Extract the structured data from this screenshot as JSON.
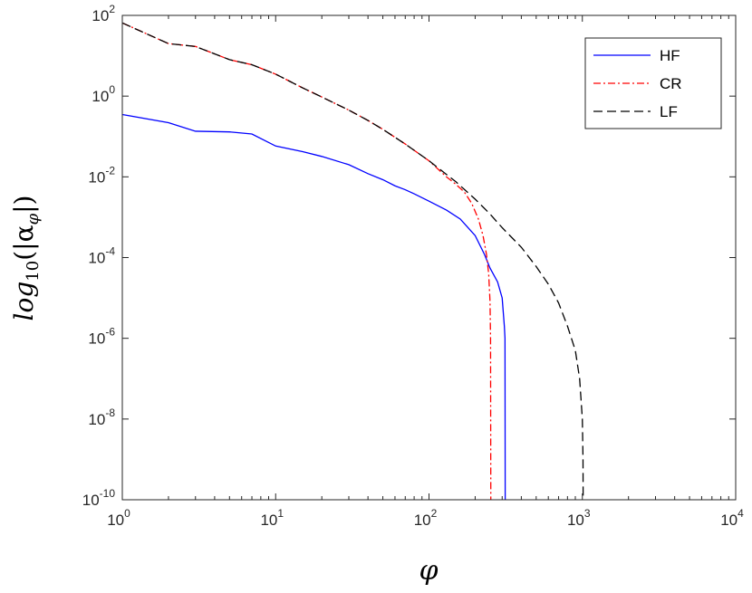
{
  "chart_data": {
    "type": "line",
    "xscale": "log",
    "yscale": "log",
    "xlim": [
      1,
      10000
    ],
    "ylim": [
      1e-10,
      100
    ],
    "xlabel": "φ",
    "ylabel_main": "log",
    "ylabel_sub": "10",
    "ylabel_paren_open": "(|α",
    "ylabel_sub2": "φ",
    "ylabel_paren_close": "|)",
    "grid": false,
    "legend_position": "top-right",
    "x_ticks": [
      {
        "base": "10",
        "exp": "0",
        "value": 1
      },
      {
        "base": "10",
        "exp": "1",
        "value": 10
      },
      {
        "base": "10",
        "exp": "2",
        "value": 100
      },
      {
        "base": "10",
        "exp": "3",
        "value": 1000
      },
      {
        "base": "10",
        "exp": "4",
        "value": 10000
      }
    ],
    "y_ticks": [
      {
        "base": "10",
        "exp": "-10",
        "value": 1e-10
      },
      {
        "base": "10",
        "exp": "-8",
        "value": 1e-08
      },
      {
        "base": "10",
        "exp": "-6",
        "value": 1e-06
      },
      {
        "base": "10",
        "exp": "-4",
        "value": 0.0001
      },
      {
        "base": "10",
        "exp": "-2",
        "value": 0.01
      },
      {
        "base": "10",
        "exp": "0",
        "value": 1
      },
      {
        "base": "10",
        "exp": "2",
        "value": 100
      }
    ],
    "series": [
      {
        "name": "HF",
        "color": "#0000ff",
        "dash": "solid",
        "points": [
          [
            1,
            0.35
          ],
          [
            2,
            0.22
          ],
          [
            3,
            0.135
          ],
          [
            5,
            0.13
          ],
          [
            7,
            0.115
          ],
          [
            10,
            0.058
          ],
          [
            15,
            0.042
          ],
          [
            20,
            0.032
          ],
          [
            30,
            0.02
          ],
          [
            40,
            0.012
          ],
          [
            50,
            0.0085
          ],
          [
            60,
            0.006
          ],
          [
            70,
            0.0048
          ],
          [
            80,
            0.0038
          ],
          [
            100,
            0.0025
          ],
          [
            130,
            0.0015
          ],
          [
            160,
            0.0009
          ],
          [
            200,
            0.00035
          ],
          [
            230,
            0.00012
          ],
          [
            250,
            5.5e-05
          ],
          [
            280,
            2.5e-05
          ],
          [
            300,
            1e-05
          ],
          [
            310,
            2e-06
          ],
          [
            313,
            1e-06
          ],
          [
            314,
            1e-10
          ]
        ]
      },
      {
        "name": "CR",
        "color": "#ff0000",
        "dash": "dashdot",
        "points": [
          [
            1,
            65
          ],
          [
            2,
            20
          ],
          [
            3,
            17
          ],
          [
            5,
            8
          ],
          [
            7,
            6
          ],
          [
            10,
            3.5
          ],
          [
            15,
            1.6
          ],
          [
            20,
            0.95
          ],
          [
            30,
            0.45
          ],
          [
            40,
            0.25
          ],
          [
            50,
            0.15
          ],
          [
            70,
            0.065
          ],
          [
            100,
            0.025
          ],
          [
            130,
            0.01
          ],
          [
            150,
            0.0065
          ],
          [
            170,
            0.0042
          ],
          [
            190,
            0.0022
          ],
          [
            210,
            0.0009
          ],
          [
            225,
            0.00035
          ],
          [
            237,
            0.00012
          ],
          [
            245,
            4e-05
          ],
          [
            250,
            8e-06
          ],
          [
            252,
            1e-06
          ],
          [
            253,
            1e-10
          ]
        ]
      },
      {
        "name": "LF",
        "color": "#000000",
        "dash": "dashed",
        "points": [
          [
            1,
            65
          ],
          [
            2,
            20
          ],
          [
            3,
            17
          ],
          [
            5,
            8
          ],
          [
            7,
            6
          ],
          [
            10,
            3.5
          ],
          [
            15,
            1.6
          ],
          [
            20,
            0.95
          ],
          [
            30,
            0.45
          ],
          [
            40,
            0.25
          ],
          [
            50,
            0.15
          ],
          [
            70,
            0.065
          ],
          [
            100,
            0.025
          ],
          [
            150,
            0.0075
          ],
          [
            200,
            0.0028
          ],
          [
            250,
            0.0012
          ],
          [
            300,
            0.00055
          ],
          [
            400,
            0.00018
          ],
          [
            500,
            6e-05
          ],
          [
            600,
            2.2e-05
          ],
          [
            700,
            7.5e-06
          ],
          [
            800,
            2e-06
          ],
          [
            900,
            5e-07
          ],
          [
            960,
            1e-07
          ],
          [
            1000,
            1e-08
          ],
          [
            1010,
            1e-09
          ],
          [
            1012,
            1e-10
          ]
        ]
      }
    ]
  }
}
